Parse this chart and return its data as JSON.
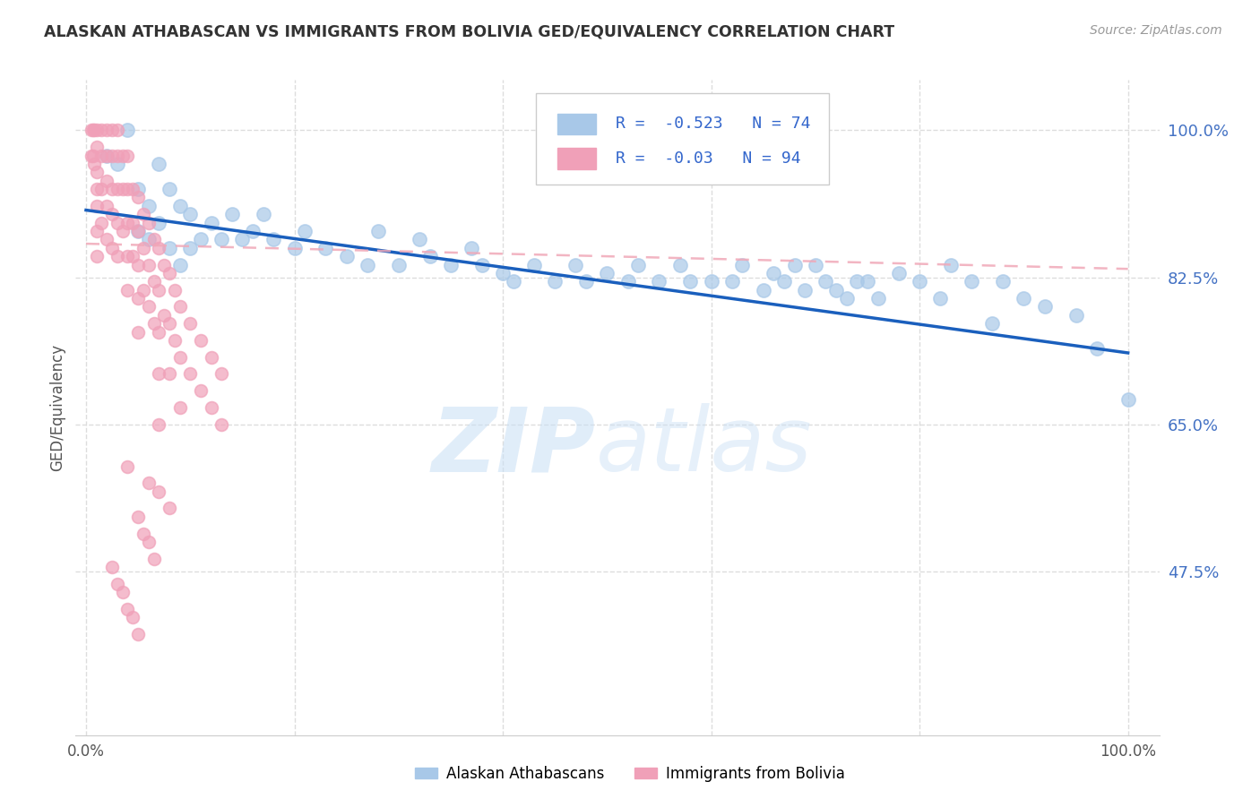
{
  "title": "ALASKAN ATHABASCAN VS IMMIGRANTS FROM BOLIVIA GED/EQUIVALENCY CORRELATION CHART",
  "source": "Source: ZipAtlas.com",
  "ylabel": "GED/Equivalency",
  "yticks": [
    0.475,
    0.65,
    0.825,
    1.0
  ],
  "ytick_labels": [
    "47.5%",
    "65.0%",
    "82.5%",
    "100.0%"
  ],
  "ylim": [
    0.28,
    1.06
  ],
  "xlim": [
    -0.01,
    1.03
  ],
  "blue_color": "#a8c8e8",
  "pink_color": "#f0a0b8",
  "blue_line_color": "#1a5fbd",
  "pink_line_color": "#f0a8b8",
  "legend_label_blue": "Alaskan Athabascans",
  "legend_label_pink": "Immigrants from Bolivia",
  "R_blue": -0.523,
  "N_blue": 74,
  "R_pink": -0.03,
  "N_pink": 94,
  "blue_trend_x0": 0.0,
  "blue_trend_y0": 0.905,
  "blue_trend_x1": 1.0,
  "blue_trend_y1": 0.735,
  "pink_trend_x0": 0.0,
  "pink_trend_y0": 0.865,
  "pink_trend_x1": 1.0,
  "pink_trend_y1": 0.835,
  "blue_x": [
    0.02,
    0.03,
    0.04,
    0.05,
    0.05,
    0.06,
    0.06,
    0.07,
    0.07,
    0.08,
    0.08,
    0.09,
    0.09,
    0.1,
    0.1,
    0.11,
    0.12,
    0.13,
    0.14,
    0.15,
    0.16,
    0.17,
    0.18,
    0.2,
    0.21,
    0.23,
    0.25,
    0.27,
    0.28,
    0.3,
    0.32,
    0.33,
    0.35,
    0.37,
    0.38,
    0.4,
    0.41,
    0.43,
    0.45,
    0.47,
    0.48,
    0.5,
    0.52,
    0.53,
    0.55,
    0.57,
    0.58,
    0.6,
    0.62,
    0.63,
    0.65,
    0.66,
    0.67,
    0.68,
    0.69,
    0.7,
    0.71,
    0.72,
    0.73,
    0.74,
    0.75,
    0.76,
    0.78,
    0.8,
    0.82,
    0.83,
    0.85,
    0.87,
    0.88,
    0.9,
    0.92,
    0.95,
    0.97,
    1.0
  ],
  "blue_y": [
    0.97,
    0.96,
    1.0,
    0.93,
    0.88,
    0.91,
    0.87,
    0.96,
    0.89,
    0.93,
    0.86,
    0.91,
    0.84,
    0.9,
    0.86,
    0.87,
    0.89,
    0.87,
    0.9,
    0.87,
    0.88,
    0.9,
    0.87,
    0.86,
    0.88,
    0.86,
    0.85,
    0.84,
    0.88,
    0.84,
    0.87,
    0.85,
    0.84,
    0.86,
    0.84,
    0.83,
    0.82,
    0.84,
    0.82,
    0.84,
    0.82,
    0.83,
    0.82,
    0.84,
    0.82,
    0.84,
    0.82,
    0.82,
    0.82,
    0.84,
    0.81,
    0.83,
    0.82,
    0.84,
    0.81,
    0.84,
    0.82,
    0.81,
    0.8,
    0.82,
    0.82,
    0.8,
    0.83,
    0.82,
    0.8,
    0.84,
    0.82,
    0.77,
    0.82,
    0.8,
    0.79,
    0.78,
    0.74,
    0.68
  ],
  "pink_x": [
    0.005,
    0.005,
    0.007,
    0.007,
    0.008,
    0.008,
    0.01,
    0.01,
    0.01,
    0.01,
    0.01,
    0.01,
    0.01,
    0.015,
    0.015,
    0.015,
    0.015,
    0.02,
    0.02,
    0.02,
    0.02,
    0.02,
    0.025,
    0.025,
    0.025,
    0.025,
    0.025,
    0.03,
    0.03,
    0.03,
    0.03,
    0.03,
    0.035,
    0.035,
    0.035,
    0.04,
    0.04,
    0.04,
    0.04,
    0.04,
    0.045,
    0.045,
    0.045,
    0.05,
    0.05,
    0.05,
    0.05,
    0.05,
    0.055,
    0.055,
    0.055,
    0.06,
    0.06,
    0.06,
    0.065,
    0.065,
    0.065,
    0.07,
    0.07,
    0.07,
    0.07,
    0.07,
    0.075,
    0.075,
    0.08,
    0.08,
    0.08,
    0.085,
    0.085,
    0.09,
    0.09,
    0.09,
    0.1,
    0.1,
    0.11,
    0.11,
    0.12,
    0.12,
    0.13,
    0.13,
    0.04,
    0.06,
    0.07,
    0.08,
    0.05,
    0.055,
    0.06,
    0.065,
    0.025,
    0.03,
    0.035,
    0.04,
    0.045,
    0.05
  ],
  "pink_y": [
    1.0,
    0.97,
    1.0,
    0.97,
    1.0,
    0.96,
    1.0,
    0.98,
    0.95,
    0.93,
    0.91,
    0.88,
    0.85,
    1.0,
    0.97,
    0.93,
    0.89,
    1.0,
    0.97,
    0.94,
    0.91,
    0.87,
    1.0,
    0.97,
    0.93,
    0.9,
    0.86,
    1.0,
    0.97,
    0.93,
    0.89,
    0.85,
    0.97,
    0.93,
    0.88,
    0.97,
    0.93,
    0.89,
    0.85,
    0.81,
    0.93,
    0.89,
    0.85,
    0.92,
    0.88,
    0.84,
    0.8,
    0.76,
    0.9,
    0.86,
    0.81,
    0.89,
    0.84,
    0.79,
    0.87,
    0.82,
    0.77,
    0.86,
    0.81,
    0.76,
    0.71,
    0.65,
    0.84,
    0.78,
    0.83,
    0.77,
    0.71,
    0.81,
    0.75,
    0.79,
    0.73,
    0.67,
    0.77,
    0.71,
    0.75,
    0.69,
    0.73,
    0.67,
    0.71,
    0.65,
    0.6,
    0.58,
    0.57,
    0.55,
    0.54,
    0.52,
    0.51,
    0.49,
    0.48,
    0.46,
    0.45,
    0.43,
    0.42,
    0.4
  ],
  "background_color": "#ffffff",
  "grid_color": "#dddddd"
}
